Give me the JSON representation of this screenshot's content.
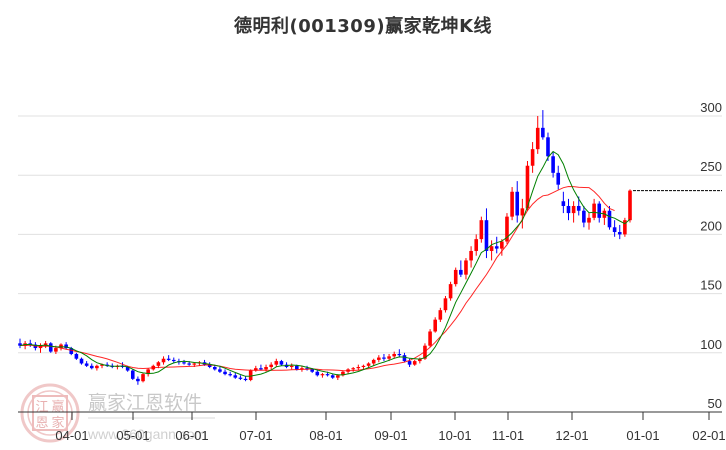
{
  "title": "德明利(001309)赢家乾坤K线",
  "watermark": {
    "brand": "赢家江恩软件",
    "url": "www.360gann.com",
    "seal_chars": [
      "江",
      "赢",
      "恩",
      "家"
    ]
  },
  "colors": {
    "up": "#ff0000",
    "down": "#0000ff",
    "neutral": "#800080",
    "ma_short": "#008000",
    "ma_long": "#ff0000",
    "grid": "#e0e0e0",
    "axis": "#333333",
    "text": "#333333"
  },
  "chart_data": {
    "type": "candlestick",
    "title": "德明利(001309)赢家乾坤K线",
    "xlabel": "",
    "ylabel": "",
    "ylim": [
      50,
      310
    ],
    "y_ticks": [
      50,
      100,
      150,
      200,
      250,
      300
    ],
    "x_ticks": [
      "04-01",
      "05-01",
      "06-01",
      "07-01",
      "08-01",
      "09-01",
      "10-01",
      "11-01",
      "12-01",
      "01-01",
      "02-01"
    ],
    "grid": true,
    "y_axis_position": "right",
    "last_price_line": 237,
    "series": [
      {
        "name": "daily_candles",
        "type": "ohlc",
        "points": [
          [
            108,
            112,
            104,
            106
          ],
          [
            106,
            110,
            103,
            108
          ],
          [
            108,
            111,
            105,
            107
          ],
          [
            107,
            109,
            102,
            104
          ],
          [
            104,
            108,
            100,
            106
          ],
          [
            106,
            110,
            104,
            108
          ],
          [
            108,
            109,
            100,
            101
          ],
          [
            101,
            106,
            99,
            104
          ],
          [
            104,
            108,
            102,
            107
          ],
          [
            107,
            109,
            103,
            104
          ],
          [
            104,
            105,
            98,
            99
          ],
          [
            99,
            100,
            94,
            95
          ],
          [
            95,
            96,
            90,
            91
          ],
          [
            91,
            93,
            88,
            89
          ],
          [
            89,
            91,
            86,
            87
          ],
          [
            87,
            90,
            85,
            89
          ],
          [
            89,
            91,
            87,
            90
          ],
          [
            90,
            92,
            88,
            89
          ],
          [
            89,
            91,
            87,
            88
          ],
          [
            88,
            90,
            86,
            89
          ],
          [
            89,
            92,
            87,
            88
          ],
          [
            88,
            89,
            84,
            85
          ],
          [
            85,
            86,
            77,
            78
          ],
          [
            78,
            80,
            73,
            76
          ],
          [
            76,
            83,
            75,
            82
          ],
          [
            82,
            87,
            80,
            86
          ],
          [
            86,
            90,
            85,
            89
          ],
          [
            89,
            93,
            87,
            92
          ],
          [
            92,
            97,
            90,
            95
          ],
          [
            95,
            98,
            93,
            94
          ],
          [
            94,
            96,
            91,
            93
          ],
          [
            93,
            95,
            90,
            92
          ],
          [
            92,
            94,
            90,
            91
          ],
          [
            91,
            93,
            89,
            90
          ],
          [
            90,
            92,
            88,
            91
          ],
          [
            91,
            93,
            89,
            92
          ],
          [
            92,
            94,
            89,
            90
          ],
          [
            90,
            92,
            87,
            88
          ],
          [
            88,
            90,
            85,
            86
          ],
          [
            86,
            88,
            83,
            84
          ],
          [
            84,
            86,
            81,
            82
          ],
          [
            82,
            84,
            80,
            81
          ],
          [
            81,
            83,
            78,
            79
          ],
          [
            79,
            81,
            77,
            78
          ],
          [
            78,
            80,
            76,
            77
          ],
          [
            77,
            86,
            76,
            85
          ],
          [
            85,
            89,
            84,
            87
          ],
          [
            87,
            90,
            85,
            86
          ],
          [
            86,
            90,
            84,
            88
          ],
          [
            88,
            92,
            86,
            90
          ],
          [
            90,
            95,
            88,
            93
          ],
          [
            93,
            94,
            89,
            90
          ],
          [
            90,
            92,
            87,
            88
          ],
          [
            88,
            91,
            86,
            89
          ],
          [
            89,
            90,
            85,
            86
          ],
          [
            86,
            89,
            84,
            87
          ],
          [
            87,
            89,
            85,
            86
          ],
          [
            86,
            87,
            83,
            84
          ],
          [
            84,
            85,
            80,
            81
          ],
          [
            81,
            83,
            79,
            82
          ],
          [
            82,
            84,
            80,
            81
          ],
          [
            81,
            82,
            78,
            79
          ],
          [
            79,
            82,
            77,
            81
          ],
          [
            81,
            85,
            80,
            84
          ],
          [
            84,
            87,
            82,
            86
          ],
          [
            86,
            88,
            84,
            87
          ],
          [
            87,
            90,
            85,
            88
          ],
          [
            88,
            90,
            86,
            89
          ],
          [
            89,
            92,
            87,
            91
          ],
          [
            91,
            95,
            89,
            94
          ],
          [
            94,
            98,
            92,
            96
          ],
          [
            96,
            99,
            93,
            95
          ],
          [
            95,
            99,
            93,
            97
          ],
          [
            97,
            101,
            95,
            99
          ],
          [
            99,
            103,
            96,
            98
          ],
          [
            98,
            100,
            92,
            93
          ],
          [
            93,
            95,
            88,
            90
          ],
          [
            90,
            94,
            89,
            93
          ],
          [
            93,
            96,
            91,
            95
          ],
          [
            95,
            108,
            94,
            106
          ],
          [
            106,
            120,
            105,
            118
          ],
          [
            118,
            130,
            117,
            128
          ],
          [
            128,
            138,
            126,
            136
          ],
          [
            136,
            148,
            134,
            146
          ],
          [
            146,
            160,
            144,
            158
          ],
          [
            158,
            172,
            156,
            170
          ],
          [
            170,
            178,
            164,
            166
          ],
          [
            166,
            180,
            162,
            178
          ],
          [
            178,
            190,
            172,
            186
          ],
          [
            186,
            200,
            182,
            196
          ],
          [
            196,
            215,
            193,
            212
          ],
          [
            212,
            222,
            180,
            186
          ],
          [
            186,
            195,
            178,
            190
          ],
          [
            190,
            198,
            184,
            188
          ],
          [
            188,
            196,
            182,
            194
          ],
          [
            194,
            218,
            192,
            215
          ],
          [
            215,
            240,
            212,
            236
          ],
          [
            236,
            245,
            210,
            216
          ],
          [
            216,
            230,
            205,
            222
          ],
          [
            222,
            262,
            220,
            258
          ],
          [
            258,
            278,
            252,
            272
          ],
          [
            272,
            300,
            268,
            290
          ],
          [
            290,
            305,
            280,
            282
          ],
          [
            282,
            286,
            262,
            266
          ],
          [
            266,
            270,
            248,
            252
          ],
          [
            252,
            258,
            238,
            242
          ],
          [
            228,
            236,
            218,
            224
          ],
          [
            224,
            230,
            212,
            218
          ],
          [
            218,
            228,
            210,
            224
          ],
          [
            224,
            232,
            216,
            220
          ],
          [
            220,
            224,
            206,
            210
          ],
          [
            210,
            218,
            204,
            214
          ],
          [
            214,
            230,
            212,
            226
          ],
          [
            226,
            228,
            210,
            214
          ],
          [
            214,
            222,
            208,
            220
          ],
          [
            220,
            224,
            204,
            206
          ],
          [
            206,
            212,
            198,
            202
          ],
          [
            202,
            208,
            196,
            200
          ],
          [
            200,
            214,
            198,
            212
          ],
          [
            212,
            238,
            210,
            237
          ]
        ]
      },
      {
        "name": "MA_short",
        "color": "#008000"
      },
      {
        "name": "MA_long",
        "color": "#ff0000"
      }
    ]
  }
}
